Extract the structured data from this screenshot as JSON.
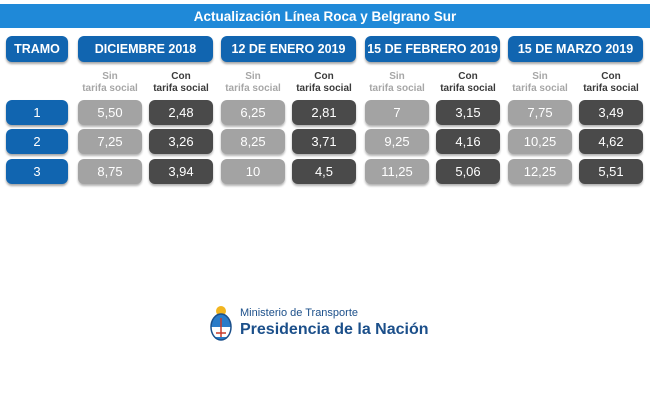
{
  "title": "Actualización Línea Roca y Belgrano Sur",
  "header": {
    "tramo": "TRAMO",
    "periods": [
      "DICIEMBRE 2018",
      "12 DE ENERO 2019",
      "15 DE FEBRERO 2019",
      "15 DE MARZO 2019"
    ]
  },
  "subheaders": {
    "sin_line1": "Sin",
    "sin_line2": "tarifa social",
    "con_line1": "Con",
    "con_line2": "tarifa social"
  },
  "rows": [
    {
      "tramo": "1",
      "values": [
        [
          "5,50",
          "2,48"
        ],
        [
          "6,25",
          "2,81"
        ],
        [
          "7",
          "3,15"
        ],
        [
          "7,75",
          "3,49"
        ]
      ]
    },
    {
      "tramo": "2",
      "values": [
        [
          "7,25",
          "3,26"
        ],
        [
          "8,25",
          "3,71"
        ],
        [
          "9,25",
          "4,16"
        ],
        [
          "10,25",
          "4,62"
        ]
      ]
    },
    {
      "tramo": "3",
      "values": [
        [
          "8,75",
          "3,94"
        ],
        [
          "10",
          "4,5"
        ],
        [
          "11,25",
          "5,06"
        ],
        [
          "12,25",
          "5,51"
        ]
      ]
    }
  ],
  "logo": {
    "line1": "Ministerio de Transporte",
    "line2": "Presidencia de la Nación"
  },
  "colors": {
    "title_bar": "#1f89d8",
    "header_blue": "#1165b0",
    "sin_gray": "#a3a3a3",
    "con_dark": "#4a4a4a"
  }
}
